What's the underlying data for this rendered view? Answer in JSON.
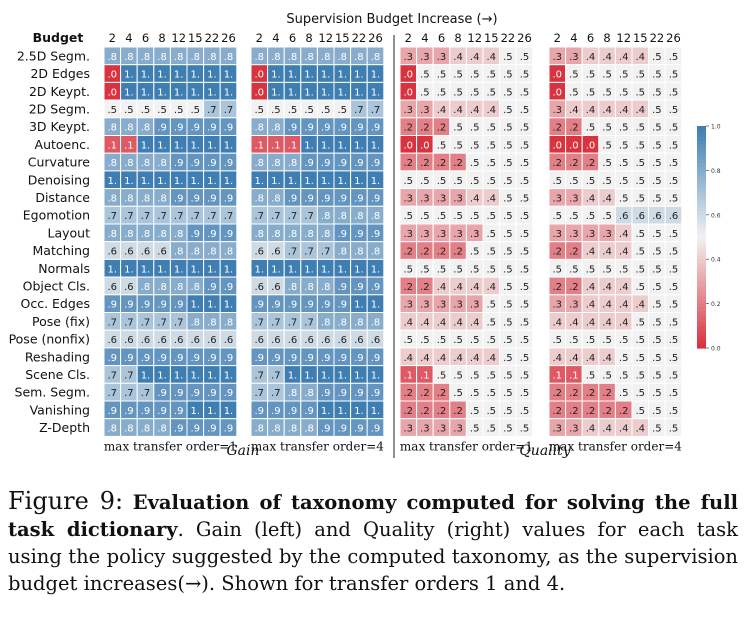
{
  "figure": {
    "super_title": "Supervision Budget Increase (→)",
    "budget_label": "Budget",
    "budgets": [
      "2",
      "4",
      "6",
      "8",
      "12",
      "15",
      "22",
      "26"
    ],
    "tasks": [
      "2.5D Segm.",
      "2D Edges",
      "2D Keypt.",
      "2D Segm.",
      "3D Keypt.",
      "Autoenc.",
      "Curvature",
      "Denoising",
      "Distance",
      "Egomotion",
      "Layout",
      "Matching",
      "Normals",
      "Object Cls.",
      "Occ. Edges",
      "Pose (fix)",
      "Pose (nonfix)",
      "Reshading",
      "Scene Cls.",
      "Sem. Segm.",
      "Vanishing",
      "Z-Depth"
    ],
    "group_labels": {
      "gain": "Gain",
      "quality": "Quality"
    },
    "panel_labels": [
      "max transfer order=1",
      "max transfer order=4",
      "max transfer order=1",
      "max transfer order=4"
    ],
    "colorbar_ticks": [
      "1.0",
      "0.8",
      "0.6",
      "0.4",
      "0.2",
      "0.0"
    ],
    "colors": {
      "high": "#3f7eb3",
      "mid": "#f2f2f2",
      "low": "#d9333f"
    }
  },
  "chart_data": {
    "type": "heatmap",
    "title": "Supervision Budget Increase (→)",
    "x": [
      2,
      4,
      6,
      8,
      12,
      15,
      22,
      26
    ],
    "xlabel": "Budget",
    "y": [
      "2.5D Segm.",
      "2D Edges",
      "2D Keypt.",
      "2D Segm.",
      "3D Keypt.",
      "Autoenc.",
      "Curvature",
      "Denoising",
      "Distance",
      "Egomotion",
      "Layout",
      "Matching",
      "Normals",
      "Object Cls.",
      "Occ. Edges",
      "Pose (fix)",
      "Pose (nonfix)",
      "Reshading",
      "Scene Cls.",
      "Sem. Segm.",
      "Vanishing",
      "Z-Depth"
    ],
    "color_range": [
      0,
      1
    ],
    "panels": [
      {
        "metric": "Gain",
        "label": "max transfer order=1",
        "values": [
          [
            0.8,
            0.8,
            0.8,
            0.8,
            0.8,
            0.8,
            0.8,
            0.8
          ],
          [
            0.0,
            1,
            1,
            1,
            1,
            1,
            1,
            1
          ],
          [
            0.0,
            1,
            1,
            1,
            1,
            1,
            1,
            1
          ],
          [
            0.5,
            0.5,
            0.5,
            0.5,
            0.5,
            0.5,
            0.7,
            0.7
          ],
          [
            0.8,
            0.8,
            0.8,
            0.9,
            0.9,
            0.9,
            0.9,
            0.9
          ],
          [
            0.1,
            0.1,
            1,
            1,
            1,
            1,
            1,
            1
          ],
          [
            0.8,
            0.8,
            0.8,
            0.8,
            0.9,
            0.9,
            0.9,
            0.9
          ],
          [
            1,
            1,
            1,
            1,
            1,
            1,
            1,
            1
          ],
          [
            0.8,
            0.8,
            0.8,
            0.8,
            0.9,
            0.9,
            0.9,
            0.9
          ],
          [
            0.7,
            0.7,
            0.7,
            0.7,
            0.7,
            0.7,
            0.7,
            0.7
          ],
          [
            0.8,
            0.8,
            0.8,
            0.8,
            0.8,
            0.9,
            0.9,
            0.9
          ],
          [
            0.6,
            0.6,
            0.6,
            0.6,
            0.8,
            0.8,
            0.8,
            0.8
          ],
          [
            1,
            1,
            1,
            1,
            1,
            1,
            1,
            1
          ],
          [
            0.6,
            0.6,
            0.8,
            0.8,
            0.8,
            0.8,
            0.9,
            0.9
          ],
          [
            0.9,
            0.9,
            0.9,
            0.9,
            0.9,
            1,
            1,
            1
          ],
          [
            0.7,
            0.7,
            0.7,
            0.7,
            0.7,
            0.8,
            0.8,
            0.8
          ],
          [
            0.6,
            0.6,
            0.6,
            0.6,
            0.6,
            0.6,
            0.6,
            0.6
          ],
          [
            0.9,
            0.9,
            0.9,
            0.9,
            0.9,
            0.9,
            0.9,
            0.9
          ],
          [
            0.7,
            0.7,
            1,
            1,
            1,
            1,
            1,
            1
          ],
          [
            0.7,
            0.7,
            0.7,
            0.9,
            0.9,
            0.9,
            0.9,
            0.9
          ],
          [
            0.9,
            0.9,
            0.9,
            0.9,
            0.9,
            1,
            1,
            1
          ],
          [
            0.8,
            0.8,
            0.8,
            0.8,
            0.9,
            0.9,
            0.9,
            0.9
          ]
        ]
      },
      {
        "metric": "Gain",
        "label": "max transfer order=4",
        "values": [
          [
            0.8,
            0.8,
            0.8,
            0.8,
            0.8,
            0.8,
            0.8,
            0.8
          ],
          [
            0.0,
            1,
            1,
            1,
            1,
            1,
            1,
            1
          ],
          [
            0.0,
            1,
            1,
            1,
            1,
            1,
            1,
            1
          ],
          [
            0.5,
            0.5,
            0.5,
            0.5,
            0.5,
            0.5,
            0.7,
            0.7
          ],
          [
            0.8,
            0.8,
            0.9,
            0.9,
            0.9,
            0.9,
            0.9,
            0.9
          ],
          [
            0.1,
            0.1,
            0.1,
            1,
            1,
            1,
            1,
            1
          ],
          [
            0.8,
            0.8,
            0.8,
            0.9,
            0.9,
            0.9,
            0.9,
            0.9
          ],
          [
            1,
            1,
            1,
            1,
            1,
            1,
            1,
            1
          ],
          [
            0.8,
            0.8,
            0.9,
            0.9,
            0.9,
            0.9,
            0.9,
            0.9
          ],
          [
            0.7,
            0.7,
            0.7,
            0.7,
            0.8,
            0.8,
            0.8,
            0.8
          ],
          [
            0.8,
            0.8,
            0.8,
            0.8,
            0.8,
            0.9,
            0.9,
            0.9
          ],
          [
            0.6,
            0.6,
            0.7,
            0.7,
            0.7,
            0.8,
            0.8,
            0.8
          ],
          [
            1,
            1,
            1,
            1,
            1,
            1,
            1,
            1
          ],
          [
            0.6,
            0.6,
            0.8,
            0.8,
            0.8,
            0.9,
            0.9,
            0.9
          ],
          [
            0.9,
            0.9,
            0.9,
            0.9,
            0.9,
            0.9,
            1,
            1
          ],
          [
            0.7,
            0.7,
            0.7,
            0.7,
            0.8,
            0.8,
            0.8,
            0.8
          ],
          [
            0.6,
            0.6,
            0.6,
            0.6,
            0.6,
            0.6,
            0.6,
            0.6
          ],
          [
            0.9,
            0.9,
            0.9,
            0.9,
            0.9,
            0.9,
            0.9,
            0.9
          ],
          [
            0.7,
            0.7,
            1,
            1,
            1,
            1,
            1,
            1
          ],
          [
            0.7,
            0.7,
            0.8,
            0.8,
            0.9,
            0.9,
            0.9,
            0.9
          ],
          [
            0.9,
            0.9,
            0.9,
            0.9,
            1,
            1,
            1,
            1
          ],
          [
            0.8,
            0.8,
            0.8,
            0.8,
            0.9,
            0.9,
            0.9,
            0.9
          ]
        ]
      },
      {
        "metric": "Quality",
        "label": "max transfer order=1",
        "values": [
          [
            0.3,
            0.3,
            0.3,
            0.4,
            0.4,
            0.4,
            0.5,
            0.5
          ],
          [
            0.0,
            0.5,
            0.5,
            0.5,
            0.5,
            0.5,
            0.5,
            0.5
          ],
          [
            0.0,
            0.5,
            0.5,
            0.5,
            0.5,
            0.5,
            0.5,
            0.5
          ],
          [
            0.3,
            0.3,
            0.4,
            0.4,
            0.4,
            0.4,
            0.5,
            0.5
          ],
          [
            0.2,
            0.2,
            0.2,
            0.5,
            0.5,
            0.5,
            0.5,
            0.5
          ],
          [
            0.0,
            0.0,
            0.5,
            0.5,
            0.5,
            0.5,
            0.5,
            0.5
          ],
          [
            0.2,
            0.2,
            0.2,
            0.2,
            0.5,
            0.5,
            0.5,
            0.5
          ],
          [
            0.5,
            0.5,
            0.5,
            0.5,
            0.5,
            0.5,
            0.5,
            0.5
          ],
          [
            0.3,
            0.3,
            0.3,
            0.3,
            0.4,
            0.4,
            0.5,
            0.5
          ],
          [
            0.5,
            0.5,
            0.5,
            0.5,
            0.5,
            0.5,
            0.5,
            0.5
          ],
          [
            0.3,
            0.3,
            0.3,
            0.3,
            0.3,
            0.5,
            0.5,
            0.5
          ],
          [
            0.2,
            0.2,
            0.2,
            0.2,
            0.5,
            0.5,
            0.5,
            0.5
          ],
          [
            0.5,
            0.5,
            0.5,
            0.5,
            0.5,
            0.5,
            0.5,
            0.5
          ],
          [
            0.2,
            0.2,
            0.4,
            0.4,
            0.4,
            0.4,
            0.5,
            0.5
          ],
          [
            0.3,
            0.3,
            0.3,
            0.3,
            0.3,
            0.5,
            0.5,
            0.5
          ],
          [
            0.4,
            0.4,
            0.4,
            0.4,
            0.4,
            0.5,
            0.5,
            0.5
          ],
          [
            0.5,
            0.5,
            0.5,
            0.5,
            0.5,
            0.5,
            0.5,
            0.5
          ],
          [
            0.4,
            0.4,
            0.4,
            0.4,
            0.4,
            0.4,
            0.5,
            0.5
          ],
          [
            0.1,
            0.1,
            0.5,
            0.5,
            0.5,
            0.5,
            0.5,
            0.5
          ],
          [
            0.2,
            0.2,
            0.2,
            0.5,
            0.5,
            0.5,
            0.5,
            0.5
          ],
          [
            0.2,
            0.2,
            0.2,
            0.2,
            0.5,
            0.5,
            0.5,
            0.5
          ],
          [
            0.3,
            0.3,
            0.3,
            0.3,
            0.5,
            0.5,
            0.5,
            0.5
          ]
        ]
      },
      {
        "metric": "Quality",
        "label": "max transfer order=4",
        "values": [
          [
            0.3,
            0.3,
            0.4,
            0.4,
            0.4,
            0.4,
            0.5,
            0.5
          ],
          [
            0.0,
            0.5,
            0.5,
            0.5,
            0.5,
            0.5,
            0.5,
            0.5
          ],
          [
            0.0,
            0.5,
            0.5,
            0.5,
            0.5,
            0.5,
            0.5,
            0.5
          ],
          [
            0.3,
            0.4,
            0.4,
            0.4,
            0.4,
            0.4,
            0.5,
            0.5
          ],
          [
            0.2,
            0.2,
            0.5,
            0.5,
            0.5,
            0.5,
            0.5,
            0.5
          ],
          [
            0.0,
            0.0,
            0.0,
            0.5,
            0.5,
            0.5,
            0.5,
            0.5
          ],
          [
            0.2,
            0.2,
            0.2,
            0.5,
            0.5,
            0.5,
            0.5,
            0.5
          ],
          [
            0.5,
            0.5,
            0.5,
            0.5,
            0.5,
            0.5,
            0.5,
            0.5
          ],
          [
            0.3,
            0.3,
            0.4,
            0.4,
            0.5,
            0.5,
            0.5,
            0.5
          ],
          [
            0.5,
            0.5,
            0.5,
            0.5,
            0.6,
            0.6,
            0.6,
            0.6
          ],
          [
            0.3,
            0.3,
            0.3,
            0.3,
            0.4,
            0.5,
            0.5,
            0.5
          ],
          [
            0.2,
            0.2,
            0.4,
            0.4,
            0.4,
            0.5,
            0.5,
            0.5
          ],
          [
            0.5,
            0.5,
            0.5,
            0.5,
            0.5,
            0.5,
            0.5,
            0.5
          ],
          [
            0.2,
            0.2,
            0.4,
            0.4,
            0.4,
            0.5,
            0.5,
            0.5
          ],
          [
            0.3,
            0.3,
            0.4,
            0.4,
            0.4,
            0.4,
            0.5,
            0.5
          ],
          [
            0.4,
            0.4,
            0.4,
            0.4,
            0.4,
            0.5,
            0.5,
            0.5
          ],
          [
            0.5,
            0.5,
            0.5,
            0.5,
            0.5,
            0.5,
            0.5,
            0.5
          ],
          [
            0.4,
            0.4,
            0.4,
            0.4,
            0.5,
            0.5,
            0.5,
            0.5
          ],
          [
            0.1,
            0.1,
            0.5,
            0.5,
            0.5,
            0.5,
            0.5,
            0.5
          ],
          [
            0.2,
            0.2,
            0.2,
            0.2,
            0.5,
            0.5,
            0.5,
            0.5
          ],
          [
            0.2,
            0.2,
            0.2,
            0.2,
            0.2,
            0.5,
            0.5,
            0.5
          ],
          [
            0.3,
            0.3,
            0.4,
            0.4,
            0.4,
            0.4,
            0.5,
            0.5
          ]
        ]
      }
    ]
  },
  "caption": {
    "label": "Figure 9:",
    "bold_text": "Evaluation of taxonomy computed for solving the full task dictionary",
    "rest_text": ". Gain (left) and Quality (right) values for each task using the policy suggested by the computed taxonomy, as the supervision budget increases(→). Shown for transfer orders 1 and 4."
  }
}
